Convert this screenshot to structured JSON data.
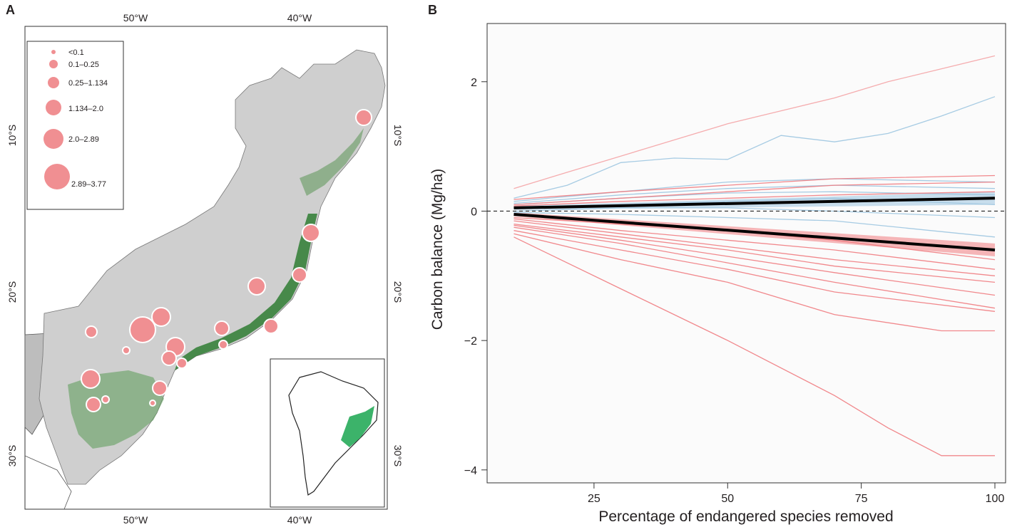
{
  "panel_a": {
    "label": "A",
    "lon_ticks_top": [
      "50°W",
      "40°W"
    ],
    "lon_ticks_bottom": [
      "50°W",
      "40°W"
    ],
    "lat_ticks_left": [
      "10°S",
      "20°S",
      "30°S"
    ],
    "lat_ticks_right": [
      "10°S",
      "20°S",
      "30°S"
    ],
    "legend": [
      "<0.1",
      "0.1–0.25",
      "0.25–1.134",
      "1.134–2.0",
      "2.0–2.89",
      "2.89–3.77"
    ],
    "colors": {
      "bubble": "#f08f92",
      "forest": "#2f7d32",
      "land": "#d0d0d0"
    }
  },
  "panel_b": {
    "label": "B",
    "chart_data": {
      "type": "line",
      "xlabel": "Percentage of endangered species removed",
      "ylabel": "Carbon balance (Mg/ha)",
      "x_ticks": [
        "25",
        "50",
        "75",
        "100"
      ],
      "y_ticks": [
        "2",
        "0",
        "−2",
        "−4"
      ],
      "xlim": [
        5,
        102
      ],
      "ylim": [
        -4.2,
        2.9
      ],
      "colors": {
        "positive": "#f4a3a5",
        "blue": "#9cc5e0",
        "negative": "#f07b80",
        "mean": "#000000"
      },
      "mean_upper": {
        "x": [
          10,
          100
        ],
        "y": [
          0.05,
          0.2
        ]
      },
      "mean_lower": {
        "x": [
          10,
          100
        ],
        "y": [
          -0.05,
          -0.6
        ]
      },
      "series": [
        {
          "group": "red_top",
          "x": [
            10,
            20,
            30,
            40,
            50,
            60,
            70,
            80,
            90,
            100
          ],
          "y": [
            0.35,
            0.6,
            0.85,
            1.1,
            1.35,
            1.55,
            1.75,
            2.0,
            2.2,
            2.4
          ]
        },
        {
          "group": "blue",
          "x": [
            10,
            20,
            30,
            40,
            50,
            60,
            70,
            80,
            90,
            100
          ],
          "y": [
            0.2,
            0.4,
            0.75,
            0.82,
            0.8,
            1.17,
            1.07,
            1.2,
            1.47,
            1.77
          ]
        },
        {
          "group": "blue",
          "x": [
            10,
            30,
            50,
            70,
            100
          ],
          "y": [
            0.15,
            0.3,
            0.45,
            0.5,
            0.45
          ]
        },
        {
          "group": "blue",
          "x": [
            10,
            30,
            50,
            70,
            100
          ],
          "y": [
            0.12,
            0.25,
            0.35,
            0.4,
            0.35
          ]
        },
        {
          "group": "blue",
          "x": [
            10,
            30,
            50,
            70,
            100
          ],
          "y": [
            0.1,
            0.2,
            0.28,
            0.3,
            0.25
          ]
        },
        {
          "group": "blue",
          "x": [
            10,
            30,
            50,
            70,
            100
          ],
          "y": [
            0.05,
            0.1,
            0.15,
            0.2,
            0.1
          ]
        },
        {
          "group": "blue",
          "x": [
            10,
            30,
            50,
            70,
            100
          ],
          "y": [
            0.0,
            0.05,
            0.05,
            0.0,
            -0.1
          ]
        },
        {
          "group": "blue",
          "x": [
            10,
            30,
            50,
            70,
            100
          ],
          "y": [
            -0.02,
            -0.05,
            -0.1,
            -0.15,
            -0.4
          ]
        },
        {
          "group": "red",
          "x": [
            10,
            30,
            50,
            70,
            100
          ],
          "y": [
            0.18,
            0.3,
            0.4,
            0.5,
            0.55
          ]
        },
        {
          "group": "red",
          "x": [
            10,
            30,
            50,
            70,
            100
          ],
          "y": [
            0.1,
            0.2,
            0.3,
            0.4,
            0.45
          ]
        },
        {
          "group": "red",
          "x": [
            10,
            30,
            50,
            70,
            100
          ],
          "y": [
            0.08,
            0.15,
            0.2,
            0.25,
            0.3
          ]
        },
        {
          "group": "red",
          "x": [
            10,
            30,
            50,
            70,
            100
          ],
          "y": [
            -0.1,
            -0.2,
            -0.3,
            -0.45,
            -0.75
          ]
        },
        {
          "group": "red",
          "x": [
            10,
            30,
            50,
            70,
            100
          ],
          "y": [
            -0.12,
            -0.3,
            -0.45,
            -0.6,
            -0.9
          ]
        },
        {
          "group": "red",
          "x": [
            10,
            30,
            50,
            70,
            100
          ],
          "y": [
            -0.15,
            -0.35,
            -0.55,
            -0.75,
            -1.0
          ]
        },
        {
          "group": "red",
          "x": [
            10,
            30,
            50,
            70,
            100
          ],
          "y": [
            -0.2,
            -0.4,
            -0.6,
            -0.85,
            -1.1
          ]
        },
        {
          "group": "red",
          "x": [
            10,
            30,
            50,
            70,
            100
          ],
          "y": [
            -0.22,
            -0.45,
            -0.7,
            -0.95,
            -1.3
          ]
        },
        {
          "group": "red",
          "x": [
            10,
            30,
            50,
            70,
            100
          ],
          "y": [
            -0.25,
            -0.5,
            -0.8,
            -1.1,
            -1.5
          ]
        },
        {
          "group": "red",
          "x": [
            10,
            30,
            50,
            70,
            100
          ],
          "y": [
            -0.3,
            -0.6,
            -0.9,
            -1.25,
            -1.55
          ]
        },
        {
          "group": "red",
          "x": [
            10,
            30,
            50,
            70,
            90,
            100
          ],
          "y": [
            -0.35,
            -0.75,
            -1.1,
            -1.6,
            -1.85,
            -1.85
          ]
        },
        {
          "group": "red",
          "x": [
            10,
            30,
            50,
            70,
            80,
            90,
            100
          ],
          "y": [
            -0.4,
            -1.2,
            -2.0,
            -2.85,
            -3.35,
            -3.78,
            -3.78
          ]
        }
      ]
    }
  }
}
